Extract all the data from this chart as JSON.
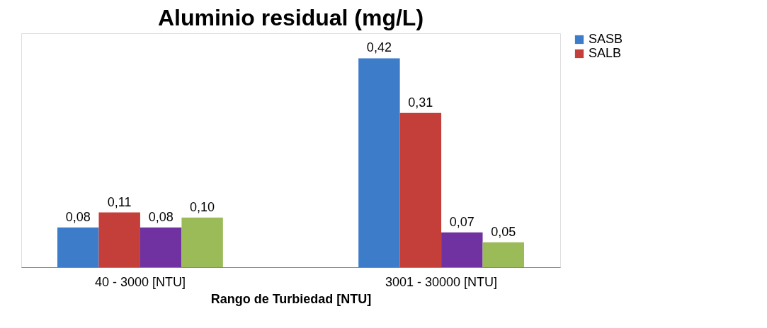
{
  "chart_data": {
    "type": "bar",
    "title": "Aluminio residual  (mg/L)",
    "xlabel": "Rango de  Turbiedad  [NTU]",
    "categories": [
      "40 - 3000  [NTU]",
      "3001 - 30000  [NTU]"
    ],
    "series": [
      {
        "name": "SASB",
        "color": "#3d7cc9",
        "values": [
          0.08,
          0.42
        ],
        "value_labels": [
          "0,08",
          "0,42"
        ]
      },
      {
        "name": "SALB",
        "color": "#c43e3a",
        "values": [
          0.11,
          0.31
        ],
        "value_labels": [
          "0,11",
          "0,31"
        ]
      },
      {
        "color": "#7032a0",
        "values": [
          0.08,
          0.07
        ],
        "value_labels": [
          "0,08",
          "0,07"
        ]
      },
      {
        "color": "#9bbb59",
        "values": [
          0.1,
          0.05
        ],
        "value_labels": [
          "0,10",
          "0,05"
        ]
      }
    ],
    "legend": "right",
    "grid": false
  }
}
